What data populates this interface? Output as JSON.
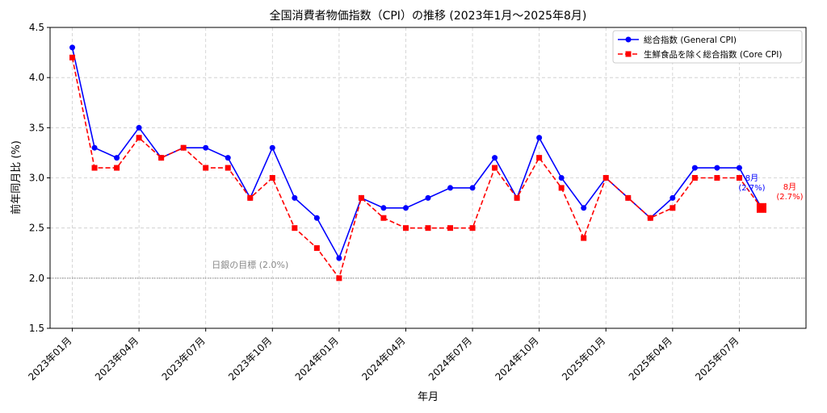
{
  "chart_data": {
    "type": "line",
    "title": "全国消費者物価指数（CPI）の推移 (2023年1月～2025年8月)",
    "xlabel": "年月",
    "ylabel": "前年同月比 (%)",
    "ylim": [
      1.5,
      4.5
    ],
    "yticks": [
      1.5,
      2.0,
      2.5,
      3.0,
      3.5,
      4.0,
      4.5
    ],
    "ytick_labels": [
      "1.5",
      "2.0",
      "2.5",
      "3.0",
      "3.5",
      "4.0",
      "4.5"
    ],
    "xlim": [
      "2022-12",
      "2025-10"
    ],
    "grid": true,
    "legend_position": "top-right",
    "x": [
      "2023-01",
      "2023-02",
      "2023-03",
      "2023-04",
      "2023-05",
      "2023-06",
      "2023-07",
      "2023-08",
      "2023-09",
      "2023-10",
      "2023-11",
      "2023-12",
      "2024-01",
      "2024-02",
      "2024-03",
      "2024-04",
      "2024-05",
      "2024-06",
      "2024-07",
      "2024-08",
      "2024-09",
      "2024-10",
      "2024-11",
      "2024-12",
      "2025-01",
      "2025-02",
      "2025-03",
      "2025-04",
      "2025-05",
      "2025-06",
      "2025-07",
      "2025-08"
    ],
    "xticks": [
      {
        "x": "2023-01",
        "label": "2023年01月"
      },
      {
        "x": "2023-04",
        "label": "2023年04月"
      },
      {
        "x": "2023-07",
        "label": "2023年07月"
      },
      {
        "x": "2023-10",
        "label": "2023年10月"
      },
      {
        "x": "2024-01",
        "label": "2024年01月"
      },
      {
        "x": "2024-04",
        "label": "2024年04月"
      },
      {
        "x": "2024-07",
        "label": "2024年07月"
      },
      {
        "x": "2024-10",
        "label": "2024年10月"
      },
      {
        "x": "2025-01",
        "label": "2025年01月"
      },
      {
        "x": "2025-04",
        "label": "2025年04月"
      },
      {
        "x": "2025-07",
        "label": "2025年07月"
      }
    ],
    "series": [
      {
        "name": "総合指数 (General CPI)",
        "color": "#0000ff",
        "line_style": "solid",
        "marker": "circle",
        "values": [
          4.3,
          3.3,
          3.2,
          3.5,
          3.2,
          3.3,
          3.3,
          3.2,
          2.8,
          3.3,
          2.8,
          2.6,
          2.2,
          2.8,
          2.7,
          2.7,
          2.8,
          2.9,
          2.9,
          3.2,
          2.8,
          3.4,
          3.0,
          2.7,
          3.0,
          2.8,
          2.6,
          2.8,
          3.1,
          3.1,
          3.1,
          2.7
        ]
      },
      {
        "name": "生鮮食品を除く総合指数 (Core CPI)",
        "color": "#ff0000",
        "line_style": "dashed",
        "marker": "square",
        "values": [
          4.2,
          3.1,
          3.1,
          3.4,
          3.2,
          3.3,
          3.1,
          3.1,
          2.8,
          3.0,
          2.5,
          2.3,
          2.0,
          2.8,
          2.6,
          2.5,
          2.5,
          2.5,
          2.5,
          3.1,
          2.8,
          3.2,
          2.9,
          2.4,
          3.0,
          2.8,
          2.6,
          2.7,
          3.0,
          3.0,
          3.0,
          2.7
        ]
      }
    ],
    "reference_line": {
      "value": 2.0,
      "label": "日銀の目標 (2.0%)",
      "color": "#888888"
    },
    "annotations": [
      {
        "series": 0,
        "x": "2025-08",
        "text_lines": [
          "8月",
          "(2.7%)"
        ],
        "color": "#0000ff"
      },
      {
        "series": 1,
        "x": "2025-08",
        "text_lines": [
          "8月",
          "(2.7%)"
        ],
        "color": "#ff0000"
      }
    ]
  }
}
